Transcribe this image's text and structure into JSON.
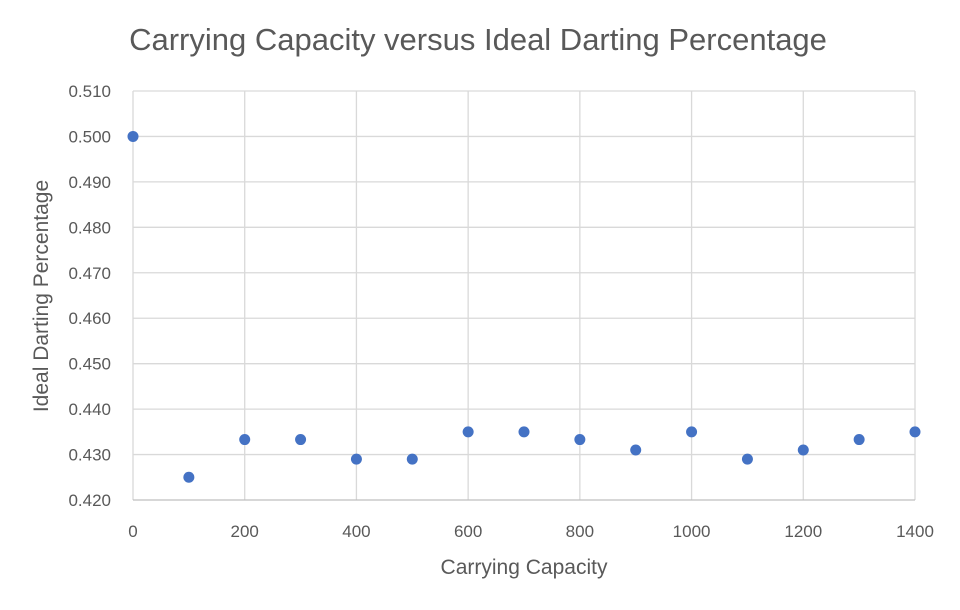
{
  "chart_data": {
    "type": "scatter",
    "title": "Carrying Capacity versus Ideal Darting Percentage",
    "xlabel": "Carrying Capacity",
    "ylabel": "Ideal Darting Percentage",
    "xlim": [
      0,
      1400
    ],
    "ylim": [
      0.42,
      0.51
    ],
    "x_ticks": [
      "0",
      "200",
      "400",
      "600",
      "800",
      "1000",
      "1200",
      "1400"
    ],
    "y_ticks": [
      "0.420",
      "0.430",
      "0.440",
      "0.450",
      "0.460",
      "0.470",
      "0.480",
      "0.490",
      "0.500",
      "0.510"
    ],
    "grid": true,
    "marker_color": "#4472c4",
    "series": [
      {
        "x": [
          0,
          100,
          200,
          300,
          400,
          500,
          600,
          700,
          800,
          900,
          1000,
          1100,
          1200,
          1300,
          1400
        ],
        "y": [
          0.5,
          0.425,
          0.4333,
          0.4333,
          0.429,
          0.429,
          0.435,
          0.435,
          0.4333,
          0.431,
          0.435,
          0.429,
          0.431,
          0.4333,
          0.435
        ]
      }
    ]
  }
}
